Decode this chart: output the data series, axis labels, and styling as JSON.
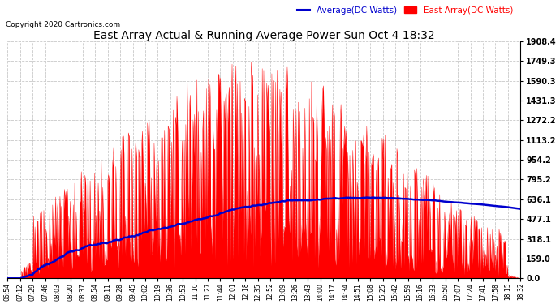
{
  "title": "East Array Actual & Running Average Power Sun Oct 4 18:32",
  "copyright": "Copyright 2020 Cartronics.com",
  "legend_average": "Average(DC Watts)",
  "legend_east": "East Array(DC Watts)",
  "y_ticks": [
    0.0,
    159.0,
    318.1,
    477.1,
    636.1,
    795.2,
    954.2,
    1113.2,
    1272.2,
    1431.3,
    1590.3,
    1749.3,
    1908.4
  ],
  "ylim": [
    0,
    1908.4
  ],
  "x_labels": [
    "06:54",
    "07:12",
    "07:29",
    "07:46",
    "08:03",
    "08:20",
    "08:37",
    "08:54",
    "09:11",
    "09:28",
    "09:45",
    "10:02",
    "10:19",
    "10:36",
    "10:53",
    "11:10",
    "11:27",
    "11:44",
    "12:01",
    "12:18",
    "12:35",
    "12:52",
    "13:09",
    "13:26",
    "13:43",
    "14:00",
    "14:17",
    "14:34",
    "14:51",
    "15:08",
    "15:25",
    "15:42",
    "15:59",
    "16:16",
    "16:33",
    "16:50",
    "17:07",
    "17:24",
    "17:41",
    "17:58",
    "18:15",
    "18:32"
  ],
  "background_color": "#ffffff",
  "fill_color": "#ff0000",
  "average_line_color": "#0000cd",
  "grid_color": "#bbbbbb",
  "title_color": "#000000",
  "copyright_color": "#000000",
  "legend_avg_color": "#0000cd",
  "legend_east_color": "#ff0000",
  "figwidth": 6.9,
  "figheight": 3.75,
  "dpi": 100
}
